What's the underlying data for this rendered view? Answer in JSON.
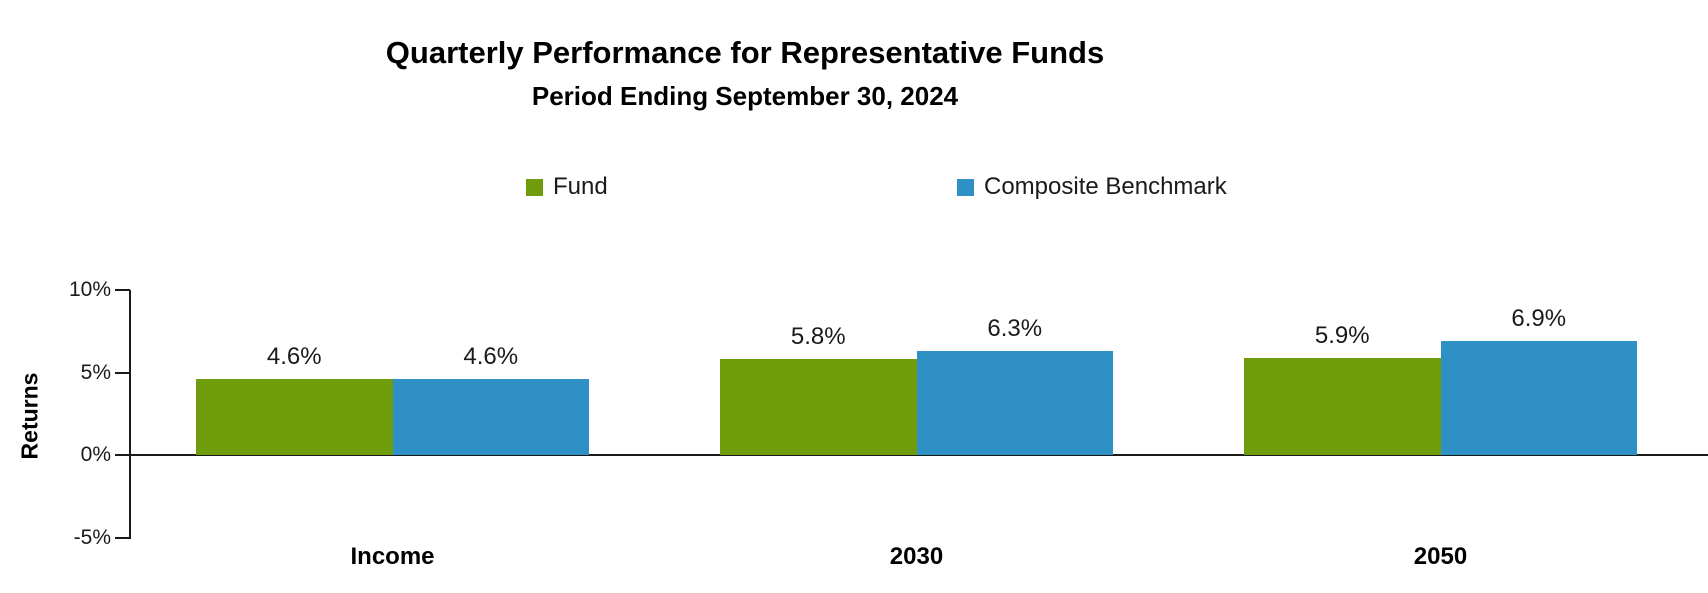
{
  "header": {
    "title": "Quarterly Performance for Representative Funds",
    "subtitle": "Period Ending September 30, 2024"
  },
  "colors": {
    "fund_green": "#6F9C0A",
    "benchmark_blue": "#2E90C5",
    "axis_line": "#1A1A1A",
    "text": "#1A1A1A"
  },
  "legend": {
    "items": [
      {
        "label": "Fund",
        "color": "#6F9C0A"
      },
      {
        "label": "Composite Benchmark",
        "color": "#2E90C5"
      }
    ]
  },
  "chart_data": {
    "type": "bar",
    "title": "Quarterly Performance for Representative Funds",
    "subtitle": "Period Ending September 30, 2024",
    "categories": [
      "Income",
      "2030",
      "2050"
    ],
    "series": [
      {
        "name": "Fund",
        "color": "#6F9C0A",
        "values": [
          4.6,
          5.8,
          5.9
        ],
        "value_labels": [
          "4.6%",
          "5.8%",
          "5.9%"
        ]
      },
      {
        "name": "Composite Benchmark",
        "color": "#2E90C5",
        "values": [
          4.6,
          6.3,
          6.9
        ],
        "value_labels": [
          "4.6%",
          "6.3%",
          "6.9%"
        ]
      }
    ],
    "xlabel": "",
    "ylabel": "Returns",
    "ylim": [
      -5,
      10
    ],
    "yticks": [
      {
        "value": 10,
        "label": "10%"
      },
      {
        "value": 5,
        "label": "5%"
      },
      {
        "value": 0,
        "label": "0%"
      },
      {
        "value": -5,
        "label": "-5%"
      }
    ],
    "grid": false,
    "legend_position": "top-center"
  }
}
